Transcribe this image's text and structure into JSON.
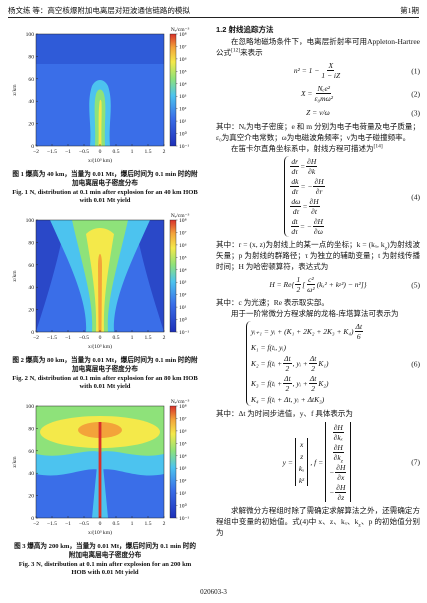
{
  "header": {
    "left": "杨文练 等：高空核爆附加电离层对短波通信链路的模拟",
    "right": "第1期"
  },
  "footer": "020603-3",
  "figures": [
    {
      "ylabel": "z/km",
      "xlabel": "x/(10³ km)",
      "cbar_label": "Nₑ/cm⁻³",
      "yticks": [
        "0",
        "20",
        "40",
        "60",
        "80",
        "100"
      ],
      "xticks": [
        "−2",
        "−1.5",
        "−1",
        "−0.5",
        "0",
        "0.5",
        "1",
        "1.5",
        "2"
      ],
      "cbar_ticks": [
        "10⁻¹",
        "10⁰",
        "10¹",
        "10²",
        "10³",
        "10⁴",
        "10⁵",
        "10⁶",
        "10⁷",
        "10⁸"
      ],
      "caption_cn": "图 1  爆高为 40 km，当量为 0.01 Mt，爆后时间为 0.1 min 时的附加电离层电子密度分布",
      "caption_en": "Fig. 1  Nₑ distribution at 0.1 min after explosion for an 40 km HOB with 0.01 Mt yield"
    },
    {
      "ylabel": "z/km",
      "xlabel": "x/(10³ km)",
      "cbar_label": "Nₑ/cm⁻³",
      "yticks": [
        "0",
        "20",
        "40",
        "60",
        "80",
        "100"
      ],
      "xticks": [
        "−2",
        "−1.5",
        "−1",
        "−0.5",
        "0",
        "0.5",
        "1",
        "1.5",
        "2"
      ],
      "cbar_ticks": [
        "10⁻¹",
        "10⁰",
        "10¹",
        "10²",
        "10³",
        "10⁴",
        "10⁵",
        "10⁶",
        "10⁷",
        "10⁸"
      ],
      "caption_cn": "图 2  爆高为 80 km，当量为 0.01 Mt，爆后时间为 0.1 min 时的附加电离层电子密度分布",
      "caption_en": "Fig. 2  Nₑ distribution at 0.1 min after explosion for an 80 km HOB with 0.01 Mt yield"
    },
    {
      "ylabel": "z/km",
      "xlabel": "x/(10³ km)",
      "cbar_label": "Nₑ/cm⁻³",
      "yticks": [
        "0",
        "20",
        "40",
        "60",
        "80",
        "100"
      ],
      "xticks": [
        "−2",
        "−1.5",
        "−1",
        "−0.5",
        "0",
        "0.5",
        "1",
        "1.5",
        "2"
      ],
      "cbar_ticks": [
        "10⁻¹",
        "10⁰",
        "10¹",
        "10²",
        "10³",
        "10⁴",
        "10⁵",
        "10⁶",
        "10⁷",
        "10⁸"
      ],
      "caption_cn": "图 3  爆高为 200 km，当量为 0.01 Mt，爆后时间为 0.1 min 时的附加电离层电子密度分布",
      "caption_en": "Fig. 3  Nₑ distribution at 0.1 min after explosion for an 200 km HOB with 0.01 Mt yield"
    }
  ],
  "body": [
    {
      "kind": "h",
      "tokens": [
        "1.2  射线追踪方法"
      ]
    },
    {
      "kind": "p",
      "tokens": [
        "在忽略地磁场条件下，电离层折射率可用Appleton-Hartree公式",
        {
          "sup": "[12]"
        },
        "来表示"
      ]
    },
    {
      "kind": "eq",
      "number": "(1)",
      "lines": [
        [
          "n² = 1 − ",
          {
            "num": "X",
            "den": "1 − iZ"
          }
        ]
      ]
    },
    {
      "kind": "eq",
      "number": "(2)",
      "lines": [
        [
          "X = ",
          {
            "num": "Nₑe²",
            "den": "ε₀mω²"
          }
        ]
      ]
    },
    {
      "kind": "eq",
      "number": "(3)",
      "lines": [
        [
          "Z = ν/ω"
        ]
      ]
    },
    {
      "kind": "p-cont",
      "tokens": [
        "其中：Nₑ为电子密度；e 和 m 分别为电子电荷量及电子质量；ε₀为真空介电常数；ω为电磁波角频率；ν为电子碰撞频率。"
      ]
    },
    {
      "kind": "p",
      "tokens": [
        "在笛卡尔直角坐标系中，射线方程可描述为",
        {
          "sup": "[14]"
        }
      ]
    },
    {
      "kind": "eq",
      "number": "(4)",
      "brace": true,
      "lines": [
        [
          {
            "num": "dr",
            "den": "dτ"
          },
          " = ",
          {
            "num": "∂H",
            "den": "∂k"
          }
        ],
        [
          {
            "num": "dk",
            "den": "dτ"
          },
          " = −",
          {
            "num": "∂H",
            "den": "∂r"
          }
        ],
        [
          {
            "num": "dω",
            "den": "dτ"
          },
          " = ",
          {
            "num": "∂H",
            "den": "∂t"
          }
        ],
        [
          {
            "num": "dt",
            "den": "dτ"
          },
          " = −",
          {
            "num": "∂H",
            "den": "∂ω"
          }
        ]
      ]
    },
    {
      "kind": "p-cont",
      "tokens": [
        "其中：r = (x, z)为射线上的某一点的坐标；k = (kₓ, k",
        {
          "sub": "z"
        },
        ")为射线波矢量；p 为射线的群路径；τ 为独立的辅助变量；t 为射线传播时间；H 为哈密顿算符，表达式为"
      ]
    },
    {
      "kind": "eq",
      "number": "(5)",
      "lines": [
        [
          "H = Re{",
          {
            "num": "1",
            "den": "2"
          },
          "[",
          {
            "num": "c²",
            "den": "ω²"
          },
          "(kₓ² + k",
          {
            "sub": "z"
          },
          "²) − n²]}"
        ]
      ]
    },
    {
      "kind": "p-cont",
      "tokens": [
        "其中：c 为光速；Re 表示取实部。"
      ]
    },
    {
      "kind": "p",
      "tokens": [
        "用于一阶常微分方程求解的龙格-库塔算法可表示为"
      ]
    },
    {
      "kind": "eq",
      "number": "(6)",
      "brace": true,
      "lines": [
        [
          "yᵢ₊₁ = yᵢ + (K₁ + 2K₂ + 2K₃ + K₄)",
          {
            "num": "Δt",
            "den": "6"
          }
        ],
        [
          "K₁ = f(tᵢ, yᵢ)"
        ],
        [
          "K₂ = f(tᵢ + ",
          {
            "num": "Δt",
            "den": "2"
          },
          ", yᵢ + ",
          {
            "num": "Δt",
            "den": "2"
          },
          "K₁)"
        ],
        [
          "K₃ = f(tᵢ + ",
          {
            "num": "Δt",
            "den": "2"
          },
          ", yᵢ + ",
          {
            "num": "Δt",
            "den": "2"
          },
          "K₂)"
        ],
        [
          "K₄ = f(tᵢ + Δt, yᵢ + ΔtK₃)"
        ]
      ]
    },
    {
      "kind": "p-cont",
      "tokens": [
        "其中：Δt 为时间步进值，y、f 具体表示为"
      ]
    },
    {
      "kind": "eq",
      "number": "(7)",
      "lines": [
        [
          "y = ",
          {
            "col": [
              [
                "x"
              ],
              [
                "z"
              ],
              [
                "kₓ"
              ],
              [
                "k",
                {
                  "sub": "z"
                }
              ]
            ]
          },
          ",  f = ",
          {
            "col": [
              [
                {
                  "num": "∂H",
                  "den": "∂kₓ"
                }
              ],
              [
                {
                  "num": "∂H",
                  "den": [
                    "∂k",
                    {
                      "sub": "z"
                    }
                  ]
                }
              ],
              [
                "−",
                {
                  "num": "∂H",
                  "den": "∂x"
                }
              ],
              [
                "−",
                {
                  "num": "∂H",
                  "den": "∂z"
                }
              ]
            ]
          }
        ]
      ]
    },
    {
      "kind": "p",
      "tokens": [
        "求解微分方程组时除了需确定求解算法之外，还需确定方程组中变量的初始值。式(4)中 x、z、kₓ、k",
        {
          "sub": "z"
        },
        "、p 的初始值分别为"
      ]
    }
  ]
}
